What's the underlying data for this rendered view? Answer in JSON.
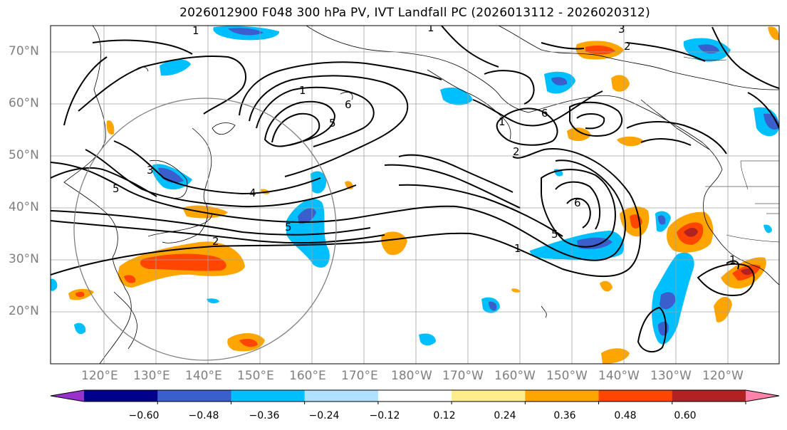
{
  "title": "2026012900 F048 300 hPa PV, IVT Landfall PC (2026013112 - 2026020312)",
  "lat_labels": [
    "70°N",
    "60°N",
    "50°N",
    "40°N",
    "30°N",
    "20°N"
  ],
  "lon_labels": [
    "120°E",
    "130°E",
    "140°E",
    "150°E",
    "160°E",
    "170°E",
    "180°W",
    "170°W",
    "160°W",
    "150°W",
    "140°W",
    "130°W",
    "120°W"
  ],
  "contour_labels": [
    "1",
    "1",
    "1",
    "1",
    "1",
    "1",
    "2",
    "2",
    "2",
    "3",
    "3",
    "4",
    "5",
    "5",
    "5",
    "5",
    "6",
    "6",
    "6"
  ],
  "colorbar": {
    "ticks": [
      "−0.60",
      "−0.48",
      "−0.36",
      "−0.24",
      "−0.12",
      "0.12",
      "0.24",
      "0.36",
      "0.48",
      "0.60"
    ],
    "colors": [
      "#9932CC",
      "#00008B",
      "#3A5FCD",
      "#00BFFF",
      "#B0E2FF",
      "#FFFFFF",
      "#FFEC8B",
      "#FFA500",
      "#FF4500",
      "#B22222",
      "#FF82AB"
    ]
  },
  "overlay_circle": "grey"
}
